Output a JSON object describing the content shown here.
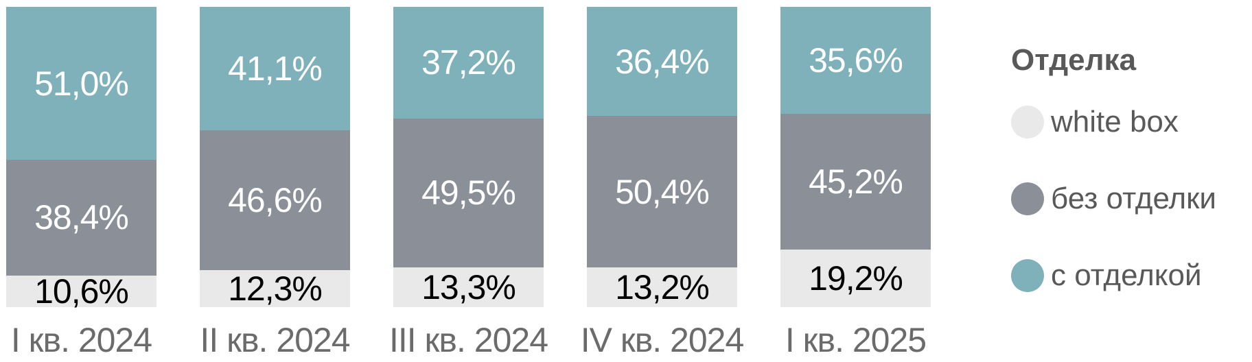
{
  "chart_data": {
    "type": "bar",
    "variant": "stacked-100-percent",
    "orientation": "vertical",
    "unit": "%",
    "ylim": [
      0,
      100
    ],
    "grid": false,
    "categories": [
      "I кв. 2024",
      "II кв. 2024",
      "III кв. 2024",
      "IV кв. 2024",
      "I кв. 2025"
    ],
    "series": [
      {
        "name": "white box",
        "color": "#e9e9ea",
        "values": [
          10.6,
          12.3,
          13.3,
          13.2,
          19.2
        ],
        "labels": [
          "10,6%",
          "12,3%",
          "13,3%",
          "13,2%",
          "19,2%"
        ]
      },
      {
        "name": "без отделки",
        "color": "#8b9098",
        "values": [
          38.4,
          46.6,
          49.5,
          50.4,
          45.2
        ],
        "labels": [
          "38,4%",
          "46,6%",
          "49,5%",
          "50,4%",
          "45,2%"
        ]
      },
      {
        "name": "с отделкой",
        "color": "#7fb1ba",
        "values": [
          51.0,
          41.1,
          37.2,
          36.4,
          35.6
        ],
        "labels": [
          "51,0%",
          "41,1%",
          "37,2%",
          "36,4%",
          "35,6%"
        ]
      }
    ],
    "legend": {
      "title": "Отделка",
      "position": "right",
      "items": [
        {
          "label": "white box",
          "color": "#e9e9ea"
        },
        {
          "label": "без отделки",
          "color": "#8b9098"
        },
        {
          "label": "с отделкой",
          "color": "#7fb1ba"
        }
      ]
    }
  },
  "colors": {
    "background": "#ffffff",
    "value_label_on_color": "#ffffff",
    "value_label_on_light": "#000000",
    "axis_label": "#6b6b6b",
    "legend_text": "#595959"
  }
}
